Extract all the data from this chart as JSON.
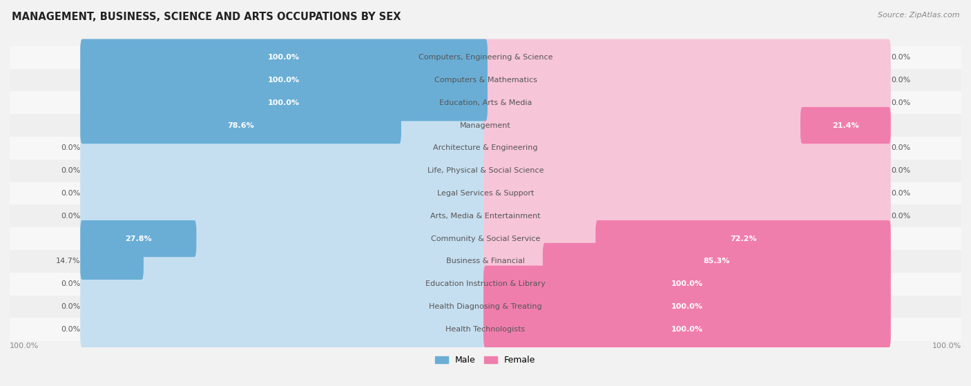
{
  "title": "MANAGEMENT, BUSINESS, SCIENCE AND ARTS OCCUPATIONS BY SEX",
  "source": "Source: ZipAtlas.com",
  "categories": [
    "Computers, Engineering & Science",
    "Computers & Mathematics",
    "Education, Arts & Media",
    "Management",
    "Architecture & Engineering",
    "Life, Physical & Social Science",
    "Legal Services & Support",
    "Arts, Media & Entertainment",
    "Community & Social Service",
    "Business & Financial",
    "Education Instruction & Library",
    "Health Diagnosing & Treating",
    "Health Technologists"
  ],
  "male": [
    100.0,
    100.0,
    100.0,
    78.6,
    0.0,
    0.0,
    0.0,
    0.0,
    27.8,
    14.7,
    0.0,
    0.0,
    0.0
  ],
  "female": [
    0.0,
    0.0,
    0.0,
    21.4,
    0.0,
    0.0,
    0.0,
    0.0,
    72.2,
    85.3,
    100.0,
    100.0,
    100.0
  ],
  "male_color": "#6aaed6",
  "female_color": "#f07ead",
  "male_color_light": "#c6dff0",
  "female_color_light": "#f7c5d8",
  "bg_color": "#f2f2f2",
  "row_bg_light": "#f7f7f7",
  "row_bg_dark": "#efefef",
  "label_color": "#555555",
  "title_color": "#222222",
  "source_color": "#888888",
  "bottom_label_color": "#888888"
}
